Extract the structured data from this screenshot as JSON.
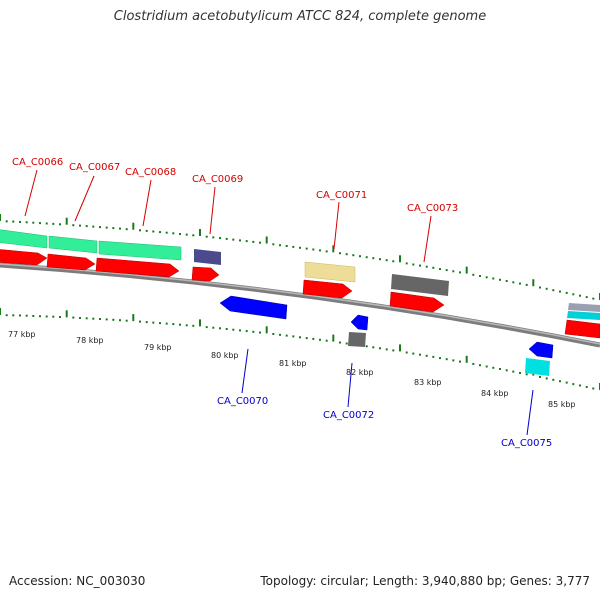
{
  "title": "Clostridium acetobutylicum ATCC 824, complete genome",
  "footer": {
    "accession": "Accession: NC_003030",
    "topology": "Topology: circular; Length: 3,940,880 bp; Genes: 3,777"
  },
  "colors": {
    "forward_label": "#d40000",
    "reverse_label": "#0000cc",
    "tick_mark": "#1b7a1b",
    "backbone": "#8c8c8c"
  },
  "scale": {
    "unit": "kbp",
    "labels": [
      {
        "kbp": 77,
        "text": "77 kbp"
      },
      {
        "kbp": 78,
        "text": "78 kbp"
      },
      {
        "kbp": 79,
        "text": "79 kbp"
      },
      {
        "kbp": 80,
        "text": "80 kbp"
      },
      {
        "kbp": 81,
        "text": "81 kbp"
      },
      {
        "kbp": 82,
        "text": "82 kbp"
      },
      {
        "kbp": 83,
        "text": "83 kbp"
      },
      {
        "kbp": 84,
        "text": "84 kbp"
      },
      {
        "kbp": 85,
        "text": "85 kbp"
      }
    ]
  },
  "genes": [
    {
      "id": "CA_C0066",
      "label": "CA_C0066",
      "strand": "+",
      "color": "#ff0000",
      "cog_color": "#33ee99"
    },
    {
      "id": "CA_C0067",
      "label": "CA_C0067",
      "strand": "+",
      "color": "#ff0000",
      "cog_color": "#33ee99"
    },
    {
      "id": "CA_C0068",
      "label": "CA_C0068",
      "strand": "+",
      "color": "#ff0000",
      "cog_color": "#33ee99"
    },
    {
      "id": "CA_C0069",
      "label": "CA_C0069",
      "strand": "+",
      "color": "#ff0000",
      "cog_color": "#4a4a8c"
    },
    {
      "id": "CA_C0070",
      "label": "CA_C0070",
      "strand": "-",
      "color": "#0000ff"
    },
    {
      "id": "CA_C0071",
      "label": "CA_C0071",
      "strand": "+",
      "color": "#ff0000",
      "cog_color": "#eedd99"
    },
    {
      "id": "CA_C0072",
      "label": "CA_C0072",
      "strand": "-",
      "color": "#0000ff",
      "cog_color": "#666666"
    },
    {
      "id": "CA_C0073",
      "label": "CA_C0073",
      "strand": "+",
      "color": "#ff0000",
      "cog_color": "#666666"
    },
    {
      "id": "CA_C0075",
      "label": "CA_C0075",
      "strand": "-",
      "color": "#0000ff",
      "cog_color": "#00e0e0"
    }
  ]
}
